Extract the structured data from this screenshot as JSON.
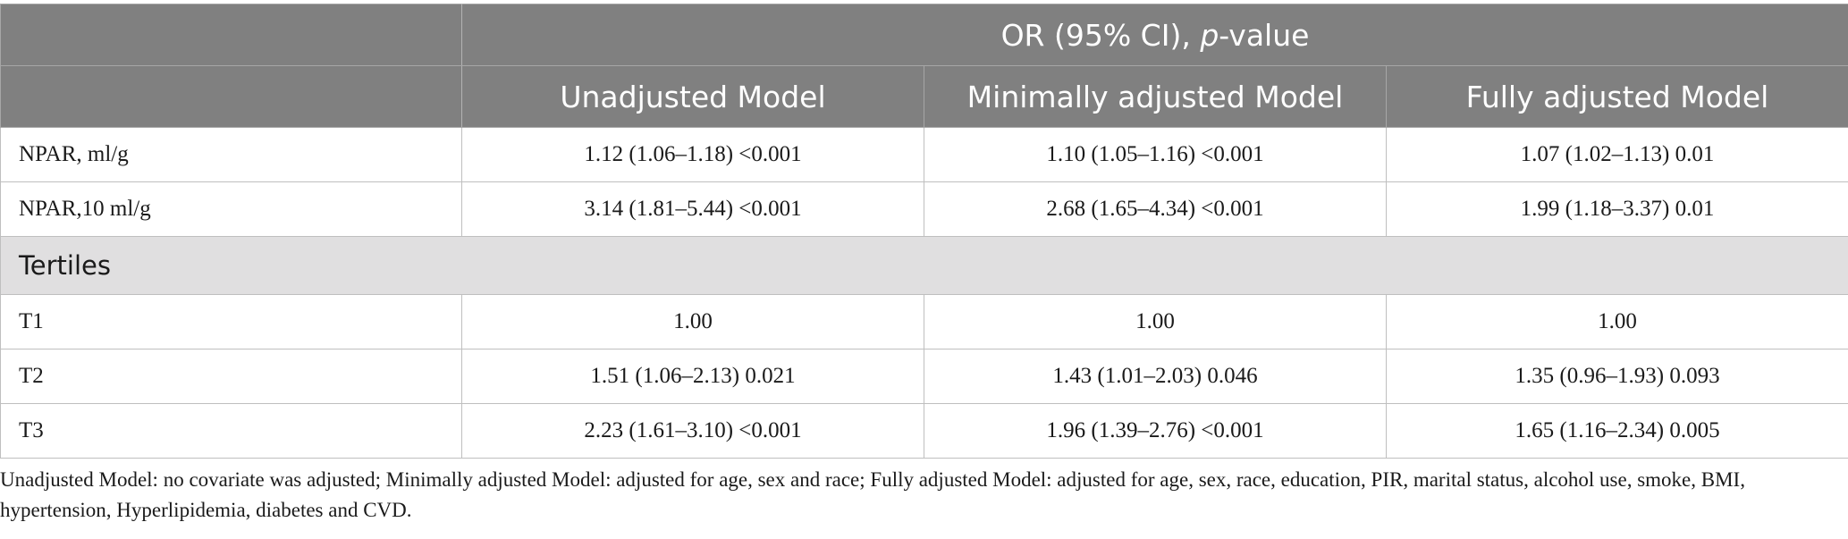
{
  "header": {
    "group_label_prefix": "OR (95% CI), ",
    "group_label_italic": "p",
    "group_label_suffix": "-value",
    "columns": [
      "Unadjusted Model",
      "Minimally adjusted Model",
      "Fully adjusted Model"
    ]
  },
  "rows_top": [
    {
      "label": "NPAR, ml/g",
      "values": [
        "1.12 (1.06–1.18) <0.001",
        "1.10 (1.05–1.16) <0.001",
        "1.07 (1.02–1.13) 0.01"
      ]
    },
    {
      "label": "NPAR,10 ml/g",
      "values": [
        "3.14 (1.81–5.44) <0.001",
        "2.68 (1.65–4.34) <0.001",
        "1.99 (1.18–3.37) 0.01"
      ]
    }
  ],
  "section": {
    "label": "Tertiles"
  },
  "rows_tertiles": [
    {
      "label": "T1",
      "values": [
        "1.00",
        "1.00",
        "1.00"
      ]
    },
    {
      "label": "T2",
      "values": [
        "1.51 (1.06–2.13) 0.021",
        "1.43 (1.01–2.03) 0.046",
        "1.35 (0.96–1.93) 0.093"
      ]
    },
    {
      "label": "T3",
      "values": [
        "2.23 (1.61–3.10) <0.001",
        "1.96 (1.39–2.76) <0.001",
        "1.65 (1.16–2.34) 0.005"
      ]
    }
  ],
  "footnote": "Unadjusted Model: no covariate was adjusted; Minimally adjusted Model: adjusted for age, sex and race; Fully adjusted Model: adjusted for age, sex, race, education, PIR, marital status, alcohol use, smoke, BMI, hypertension, Hyperlipidemia, diabetes and CVD."
}
